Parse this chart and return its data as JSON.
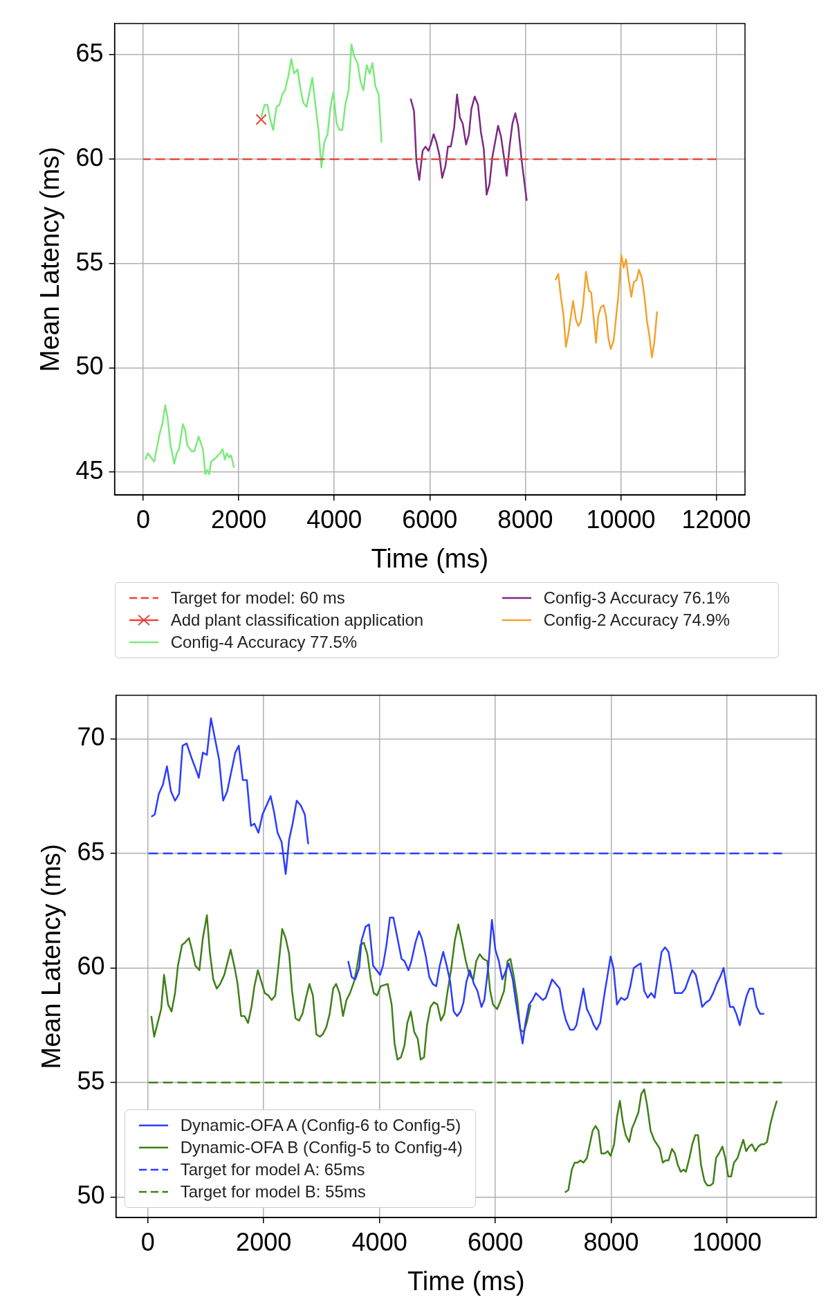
{
  "chart_data": [
    {
      "type": "line",
      "xlabel": "Time (ms)",
      "ylabel": "Mean Latency (ms)",
      "xlim": [
        -600,
        12600
      ],
      "ylim": [
        43.9,
        66.5
      ],
      "xticks": [
        0,
        2000,
        4000,
        6000,
        8000,
        10000,
        12000
      ],
      "yticks": [
        45,
        50,
        55,
        60,
        65
      ],
      "grid": true,
      "legend": "bottom",
      "series": [
        {
          "name": "Target for model: 60 ms",
          "color": "#e8453a",
          "line_style": "dashed",
          "x": [
            0,
            12000
          ],
          "values": [
            60,
            60
          ]
        },
        {
          "name": "Add plant classification application",
          "color": "#e8453a",
          "marker": "cross",
          "x": [
            2470
          ],
          "values": [
            61.9
          ]
        },
        {
          "name": "Config-4 Accuracy 77.5%",
          "color": "#7aea7a",
          "x": [
            40,
            100,
            230,
            280,
            350,
            400,
            460,
            510,
            570,
            650,
            700,
            750,
            830,
            880,
            920,
            1010,
            1070,
            1160,
            1250,
            1300,
            1340,
            1380,
            1420,
            1530,
            1560,
            1610,
            1660,
            1710,
            1750,
            1800,
            1840,
            1900,
            2200,
            2470,
            2540,
            2600,
            2660,
            2720,
            2790,
            2850,
            2910,
            2970,
            3040,
            3100,
            3160,
            3230,
            3290,
            3350,
            3420,
            3540,
            3600,
            3670,
            3730,
            3790,
            3860,
            3920,
            3980,
            4050,
            4110,
            4170,
            4230,
            4300,
            4360,
            4420,
            4490,
            4550,
            4610,
            4680,
            4740,
            4800,
            4860,
            4930,
            4990
          ],
          "values": [
            45.6,
            45.9,
            45.5,
            46.1,
            46.9,
            47.3,
            48.2,
            47.6,
            46.3,
            45.4,
            45.9,
            46.1,
            47.3,
            47.0,
            46.3,
            46.0,
            46.0,
            46.7,
            46.1,
            44.9,
            45.1,
            44.9,
            45.5,
            45.7,
            45.8,
            45.9,
            46.1,
            45.6,
            45.9,
            45.7,
            45.8,
            45.2,
            null,
            62.0,
            62.6,
            62.6,
            61.9,
            61.4,
            62.5,
            62.6,
            63.1,
            63.3,
            64.0,
            64.8,
            64.1,
            64.3,
            63.4,
            62.7,
            62.5,
            63.9,
            62.7,
            61.4,
            59.6,
            60.8,
            61.2,
            62.5,
            63.2,
            61.7,
            61.4,
            61.4,
            62.6,
            63.3,
            65.5,
            64.9,
            64.6,
            63.7,
            63.3,
            64.5,
            64.1,
            64.6,
            63.5,
            63.1,
            60.8
          ]
        },
        {
          "name": "Config-3 Accuracy 76.1%",
          "color": "#7b2a82",
          "x": [
            5600,
            5670,
            5720,
            5780,
            5850,
            5910,
            5970,
            6020,
            6080,
            6140,
            6200,
            6260,
            6330,
            6380,
            6440,
            6510,
            6570,
            6630,
            6690,
            6760,
            6820,
            6870,
            6940,
            7010,
            7070,
            7130,
            7190,
            7250,
            7310,
            7430,
            7490,
            7610,
            7670,
            7730,
            7790,
            7850,
            7920,
            8030
          ],
          "values": [
            62.9,
            62.3,
            59.9,
            59.0,
            60.4,
            60.6,
            60.4,
            60.7,
            61.2,
            60.8,
            60.2,
            59.1,
            59.7,
            60.6,
            60.6,
            61.5,
            63.1,
            62.0,
            61.7,
            60.7,
            61.2,
            62.4,
            63.0,
            62.6,
            61.3,
            60.5,
            58.3,
            58.8,
            60.1,
            61.6,
            61.1,
            59.2,
            60.6,
            61.7,
            62.2,
            61.6,
            60.0,
            58.0
          ]
        },
        {
          "name": "Config-2 Accuracy 74.9%",
          "color": "#f2a22e",
          "x": [
            8630,
            8690,
            8740,
            8800,
            8850,
            8900,
            9000,
            9060,
            9110,
            9160,
            9210,
            9270,
            9330,
            9380,
            9430,
            9480,
            9530,
            9580,
            9640,
            9690,
            9740,
            9790,
            9850,
            9900,
            9950,
            10010,
            10060,
            10110,
            10160,
            10220,
            10270,
            10330,
            10380,
            10440,
            10490,
            10550,
            10600,
            10650,
            10700,
            10760
          ],
          "values": [
            54.2,
            54.5,
            53.5,
            52.5,
            51.0,
            51.6,
            53.2,
            52.3,
            52.0,
            52.2,
            53.0,
            54.6,
            53.7,
            53.6,
            52.4,
            51.2,
            52.5,
            52.9,
            53.0,
            52.5,
            51.4,
            50.9,
            51.3,
            52.4,
            53.5,
            55.4,
            54.8,
            55.2,
            54.3,
            53.4,
            54.1,
            54.2,
            54.7,
            54.3,
            53.5,
            52.2,
            51.5,
            50.5,
            51.2,
            52.7
          ]
        }
      ]
    },
    {
      "type": "line",
      "xlabel": "Time (ms)",
      "ylabel": "Mean Latency (ms)",
      "xlim": [
        -550,
        11540
      ],
      "ylim": [
        49.1,
        71.9
      ],
      "xticks": [
        0,
        2000,
        4000,
        6000,
        8000,
        10000
      ],
      "yticks": [
        50,
        55,
        60,
        65,
        70
      ],
      "grid": true,
      "legend": "bottom left",
      "series": [
        {
          "name": "Dynamic-OFA A (Config-6 to Config-5)",
          "color": "#2b3cff",
          "x": [
            60,
            120,
            190,
            260,
            330,
            400,
            470,
            540,
            600,
            670,
            750,
            810,
            880,
            950,
            1020,
            1090,
            1160,
            1230,
            1300,
            1370,
            1510,
            1570,
            1640,
            1710,
            1780,
            1840,
            1910,
            1980,
            2050,
            2120,
            2180,
            2240,
            2310,
            2380,
            2440,
            2500,
            2570,
            2640,
            2710,
            2770,
            3100,
            3460,
            3520,
            3580,
            3650,
            3690,
            3760,
            3820,
            3890,
            4010,
            4060,
            4120,
            4180,
            4240,
            4310,
            4380,
            4430,
            4500,
            4550,
            4620,
            4680,
            4730,
            4800,
            4860,
            4920,
            4980,
            5040,
            5100,
            5160,
            5220,
            5280,
            5340,
            5400,
            5450,
            5500,
            5560,
            5630,
            5670,
            5690,
            5760,
            5810,
            5880,
            5940,
            6000,
            6060,
            6120,
            6170,
            6230,
            6300,
            6350,
            6470,
            6520,
            6580,
            6640,
            6700,
            6820,
            6870,
            6980,
            7110,
            7170,
            7220,
            7290,
            7350,
            7400,
            7520,
            7580,
            7640,
            7700,
            7750,
            7810,
            7880,
            7990,
            8040,
            8100,
            8170,
            8230,
            8280,
            8330,
            8390,
            8450,
            8510,
            8570,
            8630,
            8690,
            8750,
            8810,
            8870,
            8930,
            8990,
            9050,
            9100,
            9160,
            9220,
            9280,
            9350,
            9400,
            9460,
            9520,
            9570,
            9640,
            9700,
            9760,
            9820,
            9880,
            9940,
            9990,
            10050,
            10110,
            10160,
            10220,
            10280,
            10340,
            10390,
            10450,
            10510,
            10570,
            10640
          ],
          "values": [
            66.6,
            66.7,
            67.6,
            68.0,
            68.8,
            67.7,
            67.3,
            67.6,
            69.7,
            69.8,
            69.2,
            68.8,
            68.3,
            69.4,
            69.3,
            70.9,
            70.0,
            69.1,
            67.3,
            67.7,
            69.4,
            69.7,
            68.2,
            68.2,
            66.2,
            66.3,
            65.9,
            66.7,
            67.1,
            67.5,
            66.8,
            65.9,
            65.5,
            64.1,
            65.6,
            66.3,
            67.3,
            67.1,
            66.7,
            65.4,
            null,
            60.3,
            59.6,
            59.5,
            60.0,
            61.2,
            61.8,
            61.9,
            60.1,
            59.7,
            60.1,
            61.0,
            62.2,
            62.2,
            61.3,
            60.4,
            60.3,
            59.9,
            60.3,
            61.1,
            61.6,
            61.3,
            60.5,
            59.6,
            59.3,
            59.2,
            60.1,
            60.7,
            60.1,
            59.4,
            58.1,
            57.9,
            58.1,
            58.5,
            59.4,
            59.9,
            59.3,
            59.1,
            59.0,
            58.3,
            58.6,
            60.1,
            62.1,
            60.8,
            60.3,
            59.5,
            59.8,
            60.2,
            59.5,
            58.6,
            56.7,
            57.6,
            58.4,
            58.6,
            58.9,
            58.6,
            58.7,
            59.5,
            59.1,
            58.2,
            57.7,
            57.3,
            57.3,
            57.5,
            59.1,
            58.2,
            57.9,
            57.5,
            57.3,
            57.6,
            58.8,
            60.5,
            60.0,
            58.4,
            58.7,
            58.6,
            58.7,
            59.2,
            60.0,
            60.1,
            60.2,
            59.0,
            58.7,
            58.9,
            58.7,
            59.7,
            60.7,
            60.9,
            60.7,
            59.8,
            58.9,
            58.9,
            58.9,
            59.1,
            59.6,
            59.9,
            59.7,
            59.0,
            58.3,
            58.5,
            58.6,
            58.9,
            59.3,
            59.6,
            60.0,
            59.2,
            58.3,
            58.3,
            58.0,
            57.5,
            58.2,
            58.8,
            59.1,
            59.1,
            58.3,
            58.0,
            58.0
          ]
        },
        {
          "name": "Dynamic-OFA B (Config-5 to Config-4)",
          "color": "#3f7f17",
          "x": [
            60,
            110,
            170,
            230,
            280,
            350,
            410,
            470,
            520,
            590,
            640,
            710,
            760,
            820,
            890,
            950,
            1020,
            1070,
            1130,
            1190,
            1250,
            1320,
            1430,
            1500,
            1550,
            1610,
            1670,
            1730,
            1790,
            1840,
            1900,
            1960,
            2020,
            2080,
            2140,
            2200,
            2260,
            2320,
            2380,
            2440,
            2490,
            2550,
            2610,
            2670,
            2730,
            2790,
            2850,
            2910,
            2970,
            3020,
            3080,
            3140,
            3200,
            3250,
            3310,
            3370,
            3430,
            3490,
            3560,
            3610,
            3670,
            3730,
            3790,
            3850,
            3900,
            3960,
            4020,
            4140,
            4210,
            4260,
            4310,
            4370,
            4430,
            4480,
            4540,
            4600,
            4660,
            4710,
            4770,
            4820,
            4880,
            4940,
            5000,
            5060,
            5120,
            5170,
            5240,
            5300,
            5360,
            5420,
            5490,
            5550,
            5620,
            5670,
            5730,
            5790,
            5860,
            5910,
            5960,
            6030,
            6080,
            6150,
            6210,
            6260,
            6320,
            6380,
            6430,
            6490,
            6540,
            6610,
            6900,
            7200,
            7260,
            7320,
            7370,
            7420,
            7470,
            7520,
            7580,
            7630,
            7680,
            7730,
            7780,
            7830,
            7890,
            7940,
            7990,
            8050,
            8100,
            8150,
            8200,
            8250,
            8310,
            8360,
            8410,
            8470,
            8520,
            8570,
            8620,
            8680,
            8740,
            8790,
            8840,
            8890,
            8940,
            8990,
            9050,
            9100,
            9150,
            9200,
            9250,
            9290,
            9350,
            9400,
            9450,
            9500,
            9550,
            9610,
            9660,
            9710,
            9760,
            9810,
            9860,
            9920,
            9970,
            10020,
            10070,
            10120,
            10180,
            10230,
            10280,
            10330,
            10380,
            10430,
            10490,
            10540,
            10590,
            10640,
            10690,
            10750,
            10800,
            10860
          ],
          "values": [
            57.9,
            57.0,
            57.6,
            58.2,
            59.7,
            58.4,
            58.1,
            58.9,
            60.1,
            61.0,
            61.1,
            61.3,
            60.8,
            60.1,
            59.9,
            61.3,
            62.3,
            60.7,
            59.5,
            59.1,
            59.3,
            59.7,
            60.8,
            60.0,
            59.3,
            57.9,
            57.9,
            57.6,
            58.3,
            59.2,
            59.9,
            59.4,
            58.9,
            58.8,
            58.6,
            58.8,
            60.2,
            61.7,
            61.3,
            60.6,
            59.0,
            57.8,
            57.7,
            58.0,
            58.7,
            59.3,
            58.8,
            57.1,
            57.0,
            57.1,
            57.4,
            58.0,
            59.1,
            59.3,
            58.9,
            57.9,
            58.6,
            58.9,
            59.4,
            60.0,
            61.0,
            61.1,
            60.6,
            59.5,
            58.9,
            58.8,
            59.2,
            59.3,
            58.4,
            56.7,
            56.0,
            56.1,
            56.6,
            57.6,
            58.1,
            57.2,
            56.9,
            56.0,
            56.1,
            57.5,
            58.3,
            58.5,
            58.4,
            57.7,
            58.0,
            58.9,
            60.0,
            61.2,
            61.9,
            61.2,
            60.3,
            59.7,
            59.5,
            60.3,
            60.6,
            60.4,
            60.3,
            59.0,
            58.4,
            58.2,
            58.5,
            59.0,
            60.3,
            60.4,
            59.6,
            58.6,
            57.3,
            57.2,
            57.6,
            58.4,
            null,
            50.2,
            50.3,
            51.2,
            51.5,
            51.5,
            51.6,
            51.5,
            51.7,
            52.3,
            52.9,
            53.1,
            52.9,
            51.9,
            51.9,
            52.0,
            51.8,
            52.3,
            53.5,
            54.2,
            53.3,
            52.7,
            52.4,
            53.0,
            53.3,
            53.7,
            54.5,
            54.7,
            54.0,
            52.9,
            52.5,
            52.3,
            52.1,
            51.5,
            51.6,
            51.6,
            52.1,
            51.9,
            51.4,
            51.1,
            51.2,
            51.1,
            51.7,
            52.3,
            52.7,
            52.7,
            51.4,
            50.7,
            50.5,
            50.5,
            50.6,
            51.7,
            51.9,
            52.2,
            51.7,
            50.9,
            50.9,
            51.5,
            51.7,
            52.1,
            52.5,
            52.0,
            52.2,
            52.3,
            52.0,
            52.2,
            52.3,
            52.3,
            52.4,
            53.2,
            53.7,
            54.2
          ]
        },
        {
          "name": "Target for model A: 65ms",
          "color": "#2b3cff",
          "line_style": "dashed",
          "x": [
            0,
            10950
          ],
          "values": [
            65,
            65
          ]
        },
        {
          "name": "Target for model B: 55ms",
          "color": "#3f7f17",
          "line_style": "dashed",
          "x": [
            0,
            10950
          ],
          "values": [
            55,
            55
          ]
        }
      ]
    }
  ]
}
